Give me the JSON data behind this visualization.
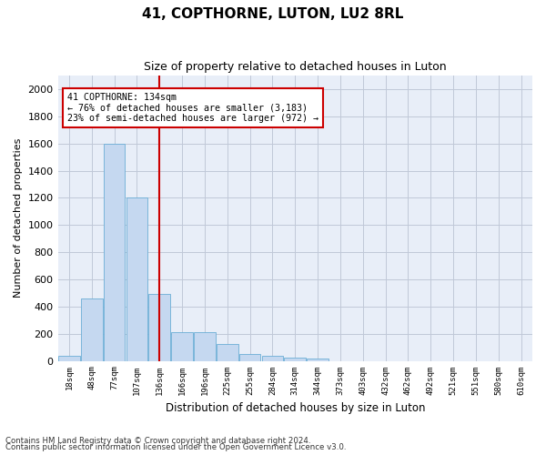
{
  "title1": "41, COPTHORNE, LUTON, LU2 8RL",
  "title2": "Size of property relative to detached houses in Luton",
  "xlabel": "Distribution of detached houses by size in Luton",
  "ylabel": "Number of detached properties",
  "bar_labels": [
    "18sqm",
    "48sqm",
    "77sqm",
    "107sqm",
    "136sqm",
    "166sqm",
    "196sqm",
    "225sqm",
    "255sqm",
    "284sqm",
    "314sqm",
    "344sqm",
    "373sqm",
    "403sqm",
    "432sqm",
    "462sqm",
    "492sqm",
    "521sqm",
    "551sqm",
    "580sqm",
    "610sqm"
  ],
  "bar_values": [
    35,
    460,
    1600,
    1200,
    490,
    210,
    210,
    125,
    50,
    40,
    25,
    15,
    0,
    0,
    0,
    0,
    0,
    0,
    0,
    0,
    0
  ],
  "bar_color": "#c5d8f0",
  "bar_edge_color": "#6baed6",
  "vline_index": 3.975,
  "annotation_text_line1": "41 COPTHORNE: 134sqm",
  "annotation_text_line2": "← 76% of detached houses are smaller (3,183)",
  "annotation_text_line3": "23% of semi-detached houses are larger (972) →",
  "vline_color": "#cc0000",
  "annotation_box_color": "#ffffff",
  "annotation_box_edge": "#cc0000",
  "ylim": [
    0,
    2100
  ],
  "yticks": [
    0,
    200,
    400,
    600,
    800,
    1000,
    1200,
    1400,
    1600,
    1800,
    2000
  ],
  "footnote1": "Contains HM Land Registry data © Crown copyright and database right 2024.",
  "footnote2": "Contains public sector information licensed under the Open Government Licence v3.0.",
  "bg_color": "#ffffff",
  "plot_bg_color": "#e8eef8",
  "grid_color": "#c0c8d8"
}
